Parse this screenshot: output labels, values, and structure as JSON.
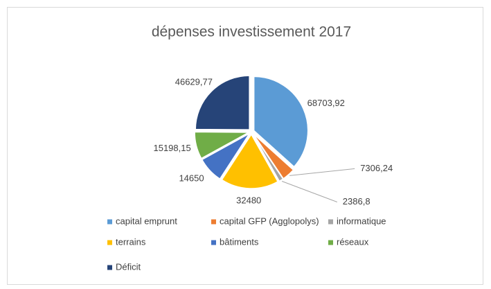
{
  "chart_data": {
    "type": "pie",
    "title": "dépenses investissement 2017",
    "categories": [
      "capital emprunt",
      "capital GFP (Agglopolys)",
      "informatique",
      "terrains",
      "bâtiments",
      "réseaux",
      "Déficit"
    ],
    "values": [
      68703.92,
      7306.24,
      2386.8,
      32480,
      14650,
      15198.15,
      46629.77
    ],
    "value_labels": [
      "68703,92",
      "7306,24",
      "2386,8",
      "32480",
      "14650",
      "15198,15",
      "46629,77"
    ],
    "colors": [
      "#5b9bd5",
      "#ed7d31",
      "#a5a5a5",
      "#ffc000",
      "#4472c4",
      "#70ad47",
      "#264478"
    ],
    "legend": "bottom"
  }
}
